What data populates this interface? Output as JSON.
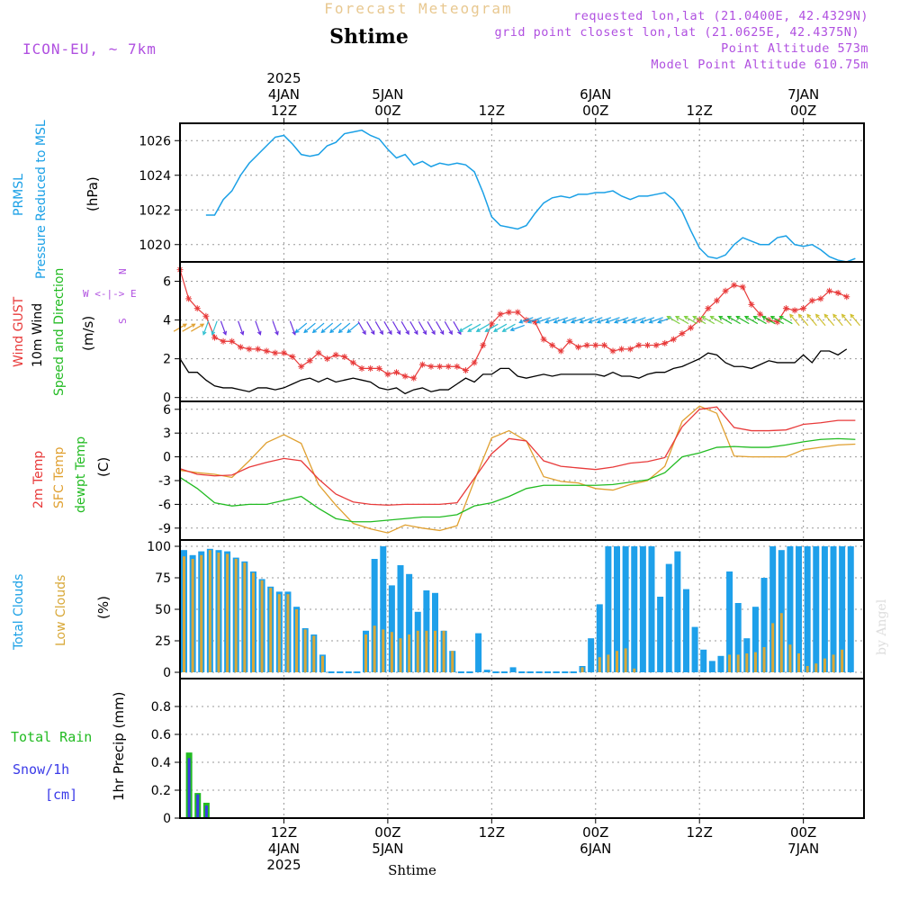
{
  "header": {
    "banner": "Forecast Meteogram",
    "location": "Shtime",
    "model": "ICON-EU, ~ 7km",
    "requested": "requested lon,lat (21.0400E, 42.4329N)",
    "gridpoint": "grid point closest lon,lat (21.0625E, 42.4375N)",
    "point_altitude": "Point Altitude 573m",
    "model_altitude": "Model Point Altitude 610.75m",
    "credit": "by Angel",
    "footer_location": "Shtime"
  },
  "colors": {
    "pressure": "#1aa0e6",
    "gust": "#e83a3a",
    "wind": "#000000",
    "wind_dir": "#22bb22",
    "temp": "#e83a3a",
    "sfc_temp": "#e0a030",
    "dewpt": "#22bb22",
    "total_clouds": "#1ea0ea",
    "low_clouds": "#d8a838",
    "rain": "#22bb22",
    "snow": "#3a3ae8",
    "compass": "#b050e0",
    "header_purple": "#b050e0",
    "banner": "#e8c890"
  },
  "time_axis": {
    "top_ticks": [
      {
        "hour": 12,
        "lines": [
          "2025",
          "4JAN",
          "12Z"
        ]
      },
      {
        "hour": 24,
        "lines": [
          "5JAN",
          "00Z"
        ]
      },
      {
        "hour": 36,
        "lines": [
          "12Z"
        ]
      },
      {
        "hour": 48,
        "lines": [
          "6JAN",
          "00Z"
        ]
      },
      {
        "hour": 60,
        "lines": [
          "12Z"
        ]
      },
      {
        "hour": 72,
        "lines": [
          "7JAN",
          "00Z"
        ]
      }
    ],
    "bottom_ticks": [
      {
        "hour": 12,
        "lines": [
          "12Z",
          "4JAN",
          "2025"
        ]
      },
      {
        "hour": 24,
        "lines": [
          "00Z",
          "5JAN"
        ]
      },
      {
        "hour": 36,
        "lines": [
          "12Z"
        ]
      },
      {
        "hour": 48,
        "lines": [
          "00Z",
          "6JAN"
        ]
      },
      {
        "hour": 60,
        "lines": [
          "12Z"
        ]
      },
      {
        "hour": 72,
        "lines": [
          "00Z",
          "7JAN"
        ]
      }
    ]
  },
  "panel_labels": {
    "pressure": [
      "PRMSL",
      "Pressure Reduced to MSL",
      "(hPa)"
    ],
    "wind": [
      "Wind GUST",
      "10m Wind",
      "Speed and Direction",
      "(m/s)"
    ],
    "compass": [
      "N",
      "W <-|-> E",
      "S"
    ],
    "temp": [
      "2m Temp",
      "SFC Temp",
      "dewpt Temp",
      "(C)"
    ],
    "clouds": [
      "Total Clouds",
      "Low Clouds",
      "(%)"
    ],
    "precip": [
      "Total Rain",
      "Snow/1h",
      "[cm]",
      "1hr Precip (mm)"
    ]
  },
  "chart_data": [
    {
      "type": "line",
      "title": "PRMSL Pressure Reduced to MSL",
      "ylabel": "(hPa)",
      "ylim": [
        1019,
        1027
      ],
      "yticks": [
        "1020",
        "1022",
        "1024",
        "1026"
      ],
      "x": [
        3,
        4,
        5,
        6,
        7,
        8,
        9,
        10,
        11,
        12,
        13,
        14,
        15,
        16,
        17,
        18,
        19,
        20,
        21,
        22,
        23,
        24,
        25,
        26,
        27,
        28,
        29,
        30,
        31,
        32,
        33,
        34,
        35,
        36,
        37,
        38,
        39,
        40,
        41,
        42,
        43,
        44,
        45,
        46,
        47,
        48,
        49,
        50,
        51,
        52,
        53,
        54,
        55,
        56,
        57,
        58,
        59,
        60,
        61,
        62,
        63,
        64,
        65,
        66,
        67,
        68,
        69,
        70,
        71,
        72,
        73,
        74,
        75,
        76,
        77,
        78
      ],
      "values": [
        1021.7,
        1021.7,
        1022.6,
        1023.1,
        1024.0,
        1024.7,
        1025.2,
        1025.7,
        1026.2,
        1026.3,
        1025.8,
        1025.2,
        1025.1,
        1025.2,
        1025.7,
        1025.9,
        1026.4,
        1026.5,
        1026.6,
        1026.3,
        1026.1,
        1025.5,
        1025.0,
        1025.2,
        1024.6,
        1024.8,
        1024.5,
        1024.7,
        1024.6,
        1024.7,
        1024.6,
        1024.2,
        1023.0,
        1021.6,
        1021.1,
        1021.0,
        1020.9,
        1021.1,
        1021.8,
        1022.4,
        1022.7,
        1022.8,
        1022.7,
        1022.9,
        1022.9,
        1023.0,
        1023.0,
        1023.1,
        1022.8,
        1022.6,
        1022.8,
        1022.8,
        1022.9,
        1023.0,
        1022.6,
        1021.9,
        1020.8,
        1019.8,
        1019.3,
        1019.2,
        1019.4,
        1020.0,
        1020.4,
        1020.2,
        1020.0,
        1020.0,
        1020.4,
        1020.5,
        1020.0,
        1019.9,
        1020.0,
        1019.7,
        1019.3,
        1019.1,
        1019.0,
        1019.2
      ]
    },
    {
      "type": "line",
      "title": "Wind GUST / 10m Wind Speed and Direction",
      "ylabel": "(m/s)",
      "ylim": [
        -0.2,
        7
      ],
      "yticks": [
        "0",
        "2",
        "4",
        "6"
      ],
      "series": [
        {
          "name": "Wind GUST",
          "marker": "*",
          "x": [
            0,
            1,
            2,
            3,
            4,
            5,
            6,
            7,
            8,
            9,
            10,
            11,
            12,
            13,
            14,
            15,
            16,
            17,
            18,
            19,
            20,
            21,
            22,
            23,
            24,
            25,
            26,
            27,
            28,
            29,
            30,
            31,
            32,
            33,
            34,
            35,
            36,
            37,
            38,
            39,
            40,
            41,
            42,
            43,
            44,
            45,
            46,
            47,
            48,
            49,
            50,
            51,
            52,
            53,
            54,
            55,
            56,
            57,
            58,
            59,
            60,
            61,
            62,
            63,
            64,
            65,
            66,
            67,
            68,
            69,
            70,
            71,
            72,
            73,
            74,
            75,
            76,
            77
          ],
          "values": [
            6.6,
            5.1,
            4.6,
            4.2,
            3.1,
            2.9,
            2.9,
            2.6,
            2.5,
            2.5,
            2.4,
            2.3,
            2.3,
            2.1,
            1.6,
            1.9,
            2.3,
            2.0,
            2.2,
            2.1,
            1.8,
            1.5,
            1.5,
            1.5,
            1.2,
            1.3,
            1.1,
            1.0,
            1.7,
            1.6,
            1.6,
            1.6,
            1.6,
            1.4,
            1.8,
            2.7,
            3.8,
            4.3,
            4.4,
            4.4,
            4.0,
            3.9,
            3.0,
            2.7,
            2.4,
            2.9,
            2.6,
            2.7,
            2.7,
            2.7,
            2.4,
            2.5,
            2.5,
            2.7,
            2.7,
            2.7,
            2.8,
            3.0,
            3.3,
            3.6,
            4.0,
            4.6,
            5.0,
            5.5,
            5.8,
            5.7,
            4.8,
            4.3,
            4.0,
            3.9,
            4.6,
            4.5,
            4.6,
            5.0,
            5.1,
            5.5,
            5.4,
            5.2
          ]
        },
        {
          "name": "10m Wind",
          "x": [
            0,
            1,
            2,
            3,
            4,
            5,
            6,
            7,
            8,
            9,
            10,
            11,
            12,
            13,
            14,
            15,
            16,
            17,
            18,
            19,
            20,
            21,
            22,
            23,
            24,
            25,
            26,
            27,
            28,
            29,
            30,
            31,
            32,
            33,
            34,
            35,
            36,
            37,
            38,
            39,
            40,
            41,
            42,
            43,
            44,
            45,
            46,
            47,
            48,
            49,
            50,
            51,
            52,
            53,
            54,
            55,
            56,
            57,
            58,
            59,
            60,
            61,
            62,
            63,
            64,
            65,
            66,
            67,
            68,
            69,
            70,
            71,
            72,
            73,
            74,
            75,
            76,
            77
          ],
          "values": [
            2.0,
            1.3,
            1.3,
            0.9,
            0.6,
            0.5,
            0.5,
            0.4,
            0.3,
            0.5,
            0.5,
            0.4,
            0.5,
            0.7,
            0.9,
            1.0,
            0.8,
            1.0,
            0.8,
            0.9,
            1.0,
            0.9,
            0.8,
            0.5,
            0.4,
            0.5,
            0.2,
            0.4,
            0.5,
            0.3,
            0.4,
            0.4,
            0.7,
            1.0,
            0.8,
            1.2,
            1.2,
            1.5,
            1.5,
            1.1,
            1.0,
            1.1,
            1.2,
            1.1,
            1.2,
            1.2,
            1.2,
            1.2,
            1.2,
            1.1,
            1.3,
            1.1,
            1.1,
            1.0,
            1.2,
            1.3,
            1.3,
            1.5,
            1.6,
            1.8,
            2.0,
            2.3,
            2.2,
            1.8,
            1.6,
            1.6,
            1.5,
            1.7,
            1.9,
            1.8,
            1.8,
            1.8,
            2.2,
            1.8,
            2.4,
            2.4,
            2.2,
            2.5
          ]
        }
      ]
    },
    {
      "type": "line",
      "title": "2m Temp / SFC Temp / dewpt Temp",
      "ylabel": "(C)",
      "ylim": [
        -10.5,
        7
      ],
      "yticks": [
        "6",
        "3",
        "0",
        "-3",
        "-6",
        "-9"
      ],
      "series": [
        {
          "name": "2m Temp",
          "x": [
            0,
            2,
            4,
            6,
            8,
            10,
            12,
            14,
            16,
            18,
            20,
            22,
            24,
            26,
            28,
            30,
            32,
            34,
            36,
            38,
            40,
            42,
            44,
            46,
            48,
            50,
            52,
            54,
            56,
            58,
            60,
            62,
            64,
            66,
            68,
            70,
            72,
            74,
            76,
            78
          ],
          "values": [
            -1.5,
            -2.2,
            -2.4,
            -2.3,
            -1.3,
            -0.7,
            -0.2,
            -0.5,
            -2.8,
            -4.7,
            -5.7,
            -6.0,
            -6.1,
            -6.0,
            -6.0,
            -6.0,
            -5.8,
            -2.7,
            0.4,
            2.3,
            2.0,
            -0.5,
            -1.2,
            -1.4,
            -1.6,
            -1.3,
            -0.8,
            -0.6,
            -0.1,
            3.8,
            6.0,
            6.3,
            3.7,
            3.3,
            3.3,
            3.4,
            4.1,
            4.3,
            4.6,
            4.6
          ]
        },
        {
          "name": "SFC Temp",
          "x": [
            0,
            2,
            4,
            6,
            8,
            10,
            12,
            14,
            16,
            18,
            20,
            22,
            24,
            26,
            28,
            30,
            32,
            34,
            36,
            38,
            40,
            42,
            44,
            46,
            48,
            50,
            52,
            54,
            56,
            58,
            60,
            62,
            64,
            66,
            68,
            70,
            72,
            74,
            76,
            78
          ],
          "values": [
            -1.7,
            -2.0,
            -2.2,
            -2.6,
            -0.5,
            1.8,
            2.8,
            1.7,
            -3.5,
            -6.1,
            -8.4,
            -9.1,
            -9.6,
            -8.6,
            -9.0,
            -9.3,
            -8.7,
            -3.0,
            2.4,
            3.3,
            2.0,
            -2.5,
            -3.1,
            -3.3,
            -4.0,
            -4.2,
            -3.5,
            -3.0,
            -1.2,
            4.5,
            6.4,
            5.5,
            0.1,
            0.0,
            0.0,
            0.0,
            0.9,
            1.2,
            1.5,
            1.6
          ]
        },
        {
          "name": "dewpt Temp",
          "x": [
            0,
            2,
            4,
            6,
            8,
            10,
            12,
            14,
            16,
            18,
            20,
            22,
            24,
            26,
            28,
            30,
            32,
            34,
            36,
            38,
            40,
            42,
            44,
            46,
            48,
            50,
            52,
            54,
            56,
            58,
            60,
            62,
            64,
            66,
            68,
            70,
            72,
            74,
            76,
            78
          ],
          "values": [
            -2.6,
            -4.0,
            -5.8,
            -6.2,
            -6.0,
            -6.0,
            -5.5,
            -5.0,
            -6.5,
            -7.8,
            -8.2,
            -8.2,
            -8.0,
            -7.8,
            -7.6,
            -7.6,
            -7.3,
            -6.2,
            -5.8,
            -5.0,
            -4.0,
            -3.6,
            -3.6,
            -3.6,
            -3.6,
            -3.5,
            -3.2,
            -2.9,
            -2.0,
            0.0,
            0.5,
            1.2,
            1.3,
            1.2,
            1.2,
            1.5,
            1.9,
            2.2,
            2.3,
            2.2
          ]
        }
      ]
    },
    {
      "type": "bar",
      "title": "Total Clouds / Low Clouds",
      "ylabel": "(%)",
      "ylim": [
        -5,
        105
      ],
      "yticks": [
        "0",
        "25",
        "50",
        "75",
        "100"
      ],
      "x": [
        0,
        1,
        2,
        3,
        4,
        5,
        6,
        7,
        8,
        9,
        10,
        11,
        12,
        13,
        14,
        15,
        16,
        17,
        18,
        19,
        20,
        21,
        22,
        23,
        24,
        25,
        26,
        27,
        28,
        29,
        30,
        31,
        32,
        33,
        34,
        35,
        36,
        37,
        38,
        39,
        40,
        41,
        42,
        43,
        44,
        45,
        46,
        47,
        48,
        49,
        50,
        51,
        52,
        53,
        54,
        55,
        56,
        57,
        58,
        59,
        60,
        61,
        62,
        63,
        64,
        65,
        66,
        67,
        68,
        69,
        70,
        71,
        72,
        73,
        74,
        75,
        76,
        77
      ],
      "series": [
        {
          "name": "Total Clouds",
          "values": [
            97,
            93,
            96,
            98,
            97,
            96,
            91,
            88,
            80,
            74,
            68,
            64,
            64,
            52,
            35,
            30,
            14,
            0,
            0,
            0,
            0,
            33,
            90,
            100,
            69,
            85,
            78,
            48,
            65,
            63,
            33,
            17,
            0,
            0,
            31,
            2,
            0,
            0,
            4,
            0,
            0,
            0,
            0,
            0,
            0,
            0,
            5,
            27,
            54,
            100,
            100,
            100,
            100,
            100,
            100,
            60,
            86,
            96,
            66,
            36,
            18,
            9,
            13,
            80,
            55,
            27,
            52,
            75,
            100,
            97,
            100,
            100,
            100,
            100,
            100,
            100,
            100,
            100
          ]
        },
        {
          "name": "Low Clouds",
          "values": [
            92,
            90,
            93,
            97,
            95,
            94,
            90,
            87,
            79,
            73,
            67,
            62,
            62,
            50,
            34,
            29,
            13,
            0,
            0,
            0,
            0,
            30,
            37,
            34,
            32,
            27,
            30,
            33,
            33,
            33,
            33,
            17,
            0,
            0,
            0,
            0,
            0,
            0,
            0,
            0,
            0,
            0,
            0,
            0,
            0,
            0,
            4,
            0,
            12,
            14,
            17,
            19,
            3,
            0,
            0,
            0,
            0,
            0,
            0,
            0,
            0,
            0,
            0,
            14,
            14,
            15,
            16,
            20,
            39,
            47,
            22,
            15,
            5,
            7,
            11,
            14,
            18,
            0
          ]
        }
      ]
    },
    {
      "type": "bar",
      "title": "1hr Precip (mm)",
      "ylabel": "1hr Precip (mm)",
      "ylim": [
        0,
        1.0
      ],
      "yticks": [
        "0",
        "0.2",
        "0.4",
        "0.6",
        "0.8"
      ],
      "x": [
        1,
        2,
        3
      ],
      "series": [
        {
          "name": "Total Rain",
          "values": [
            0.47,
            0.18,
            0.11
          ]
        },
        {
          "name": "Snow/1h",
          "values": [
            0.43,
            0.17,
            0.09
          ]
        }
      ]
    }
  ]
}
